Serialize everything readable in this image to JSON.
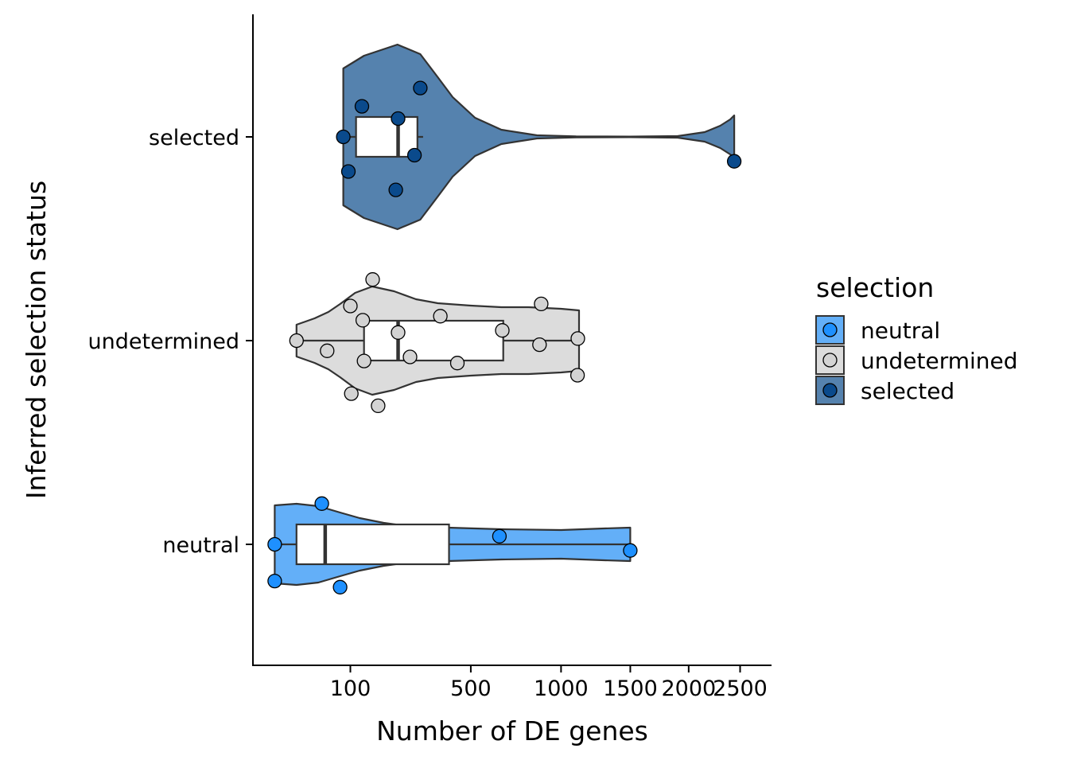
{
  "chart_data": {
    "type": "violin",
    "xlabel": "Number of DE genes",
    "ylabel": "Inferred selection status",
    "x_scale": "sqrt",
    "xlim": [
      0,
      2550
    ],
    "x_ticks": [
      100,
      500,
      1000,
      1500,
      2000,
      2500
    ],
    "categories": [
      "selected",
      "undetermined",
      "neutral"
    ],
    "legend": {
      "title": "selection",
      "position": "right",
      "entries": [
        "neutral",
        "undetermined",
        "selected"
      ]
    },
    "colors": {
      "neutral": "#1e90ff",
      "undetermined": "#d3d3d3",
      "selected": "#0a4a8c",
      "neutral_violin": "#63aff8",
      "undetermined_violin": "#dcdcdc",
      "selected_violin": "#5582ae"
    },
    "series": [
      {
        "name": "selected",
        "box": {
          "min": 86,
          "q1": 112,
          "median": 222,
          "q3": 285,
          "max": 305
        },
        "points": [
          {
            "x": 295,
            "y": 0.24
          },
          {
            "x": 125,
            "y": 0.15
          },
          {
            "x": 222,
            "y": 0.09
          },
          {
            "x": 86,
            "y": 0.0
          },
          {
            "x": 275,
            "y": -0.09
          },
          {
            "x": 96,
            "y": -0.17
          },
          {
            "x": 215,
            "y": -0.26
          },
          {
            "x": 2440,
            "y": -0.12
          }
        ]
      },
      {
        "name": "undetermined",
        "box": {
          "min": 20,
          "q1": 130,
          "median": 222,
          "q3": 660,
          "max": 1120
        },
        "points": [
          {
            "x": 151,
            "y": 0.3
          },
          {
            "x": 100,
            "y": 0.17
          },
          {
            "x": 875,
            "y": 0.18
          },
          {
            "x": 370,
            "y": 0.12
          },
          {
            "x": 127,
            "y": 0.1
          },
          {
            "x": 655,
            "y": 0.05
          },
          {
            "x": 222,
            "y": 0.04
          },
          {
            "x": 20,
            "y": 0.0
          },
          {
            "x": 1112,
            "y": 0.01
          },
          {
            "x": 865,
            "y": -0.02
          },
          {
            "x": 58,
            "y": -0.05
          },
          {
            "x": 260,
            "y": -0.08
          },
          {
            "x": 130,
            "y": -0.1
          },
          {
            "x": 440,
            "y": -0.11
          },
          {
            "x": 1110,
            "y": -0.17
          },
          {
            "x": 102,
            "y": -0.26
          },
          {
            "x": 165,
            "y": -0.32
          }
        ]
      },
      {
        "name": "neutral",
        "box": {
          "min": 5,
          "q1": 20,
          "median": 55,
          "q3": 405,
          "max": 1500
        },
        "points": [
          {
            "x": 50,
            "y": 0.2
          },
          {
            "x": 640,
            "y": 0.04
          },
          {
            "x": 5,
            "y": 0.0
          },
          {
            "x": 1500,
            "y": -0.03
          },
          {
            "x": 5,
            "y": -0.18
          },
          {
            "x": 80,
            "y": -0.21
          }
        ]
      }
    ]
  }
}
